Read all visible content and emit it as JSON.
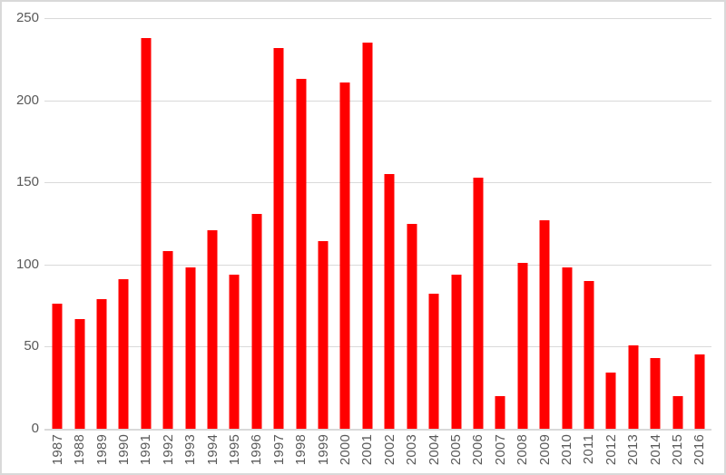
{
  "chart_data": {
    "type": "bar",
    "title": "",
    "xlabel": "",
    "ylabel": "",
    "categories": [
      "1987",
      "1988",
      "1989",
      "1990",
      "1991",
      "1992",
      "1993",
      "1994",
      "1995",
      "1996",
      "1997",
      "1998",
      "1999",
      "2000",
      "2001",
      "2002",
      "2003",
      "2004",
      "2005",
      "2006",
      "2007",
      "2008",
      "2009",
      "2010",
      "2011",
      "2012",
      "2013",
      "2014",
      "2015",
      "2016"
    ],
    "values": [
      76,
      67,
      79,
      91,
      238,
      108,
      98,
      121,
      94,
      131,
      232,
      213,
      114,
      211,
      235,
      155,
      125,
      82,
      94,
      153,
      20,
      101,
      127,
      98,
      90,
      34,
      51,
      43,
      20,
      45
    ],
    "ylim": [
      0,
      250
    ],
    "yticks": [
      0,
      50,
      100,
      150,
      200,
      250
    ],
    "grid": true,
    "legend": false,
    "colors": {
      "bar": "#FF0000",
      "gridline": "#D9D9D9",
      "axis_line": "#D9D9D9",
      "tick_label": "#595959",
      "chart_border": "#D9D9D9",
      "background": "#FFFFFF"
    }
  }
}
